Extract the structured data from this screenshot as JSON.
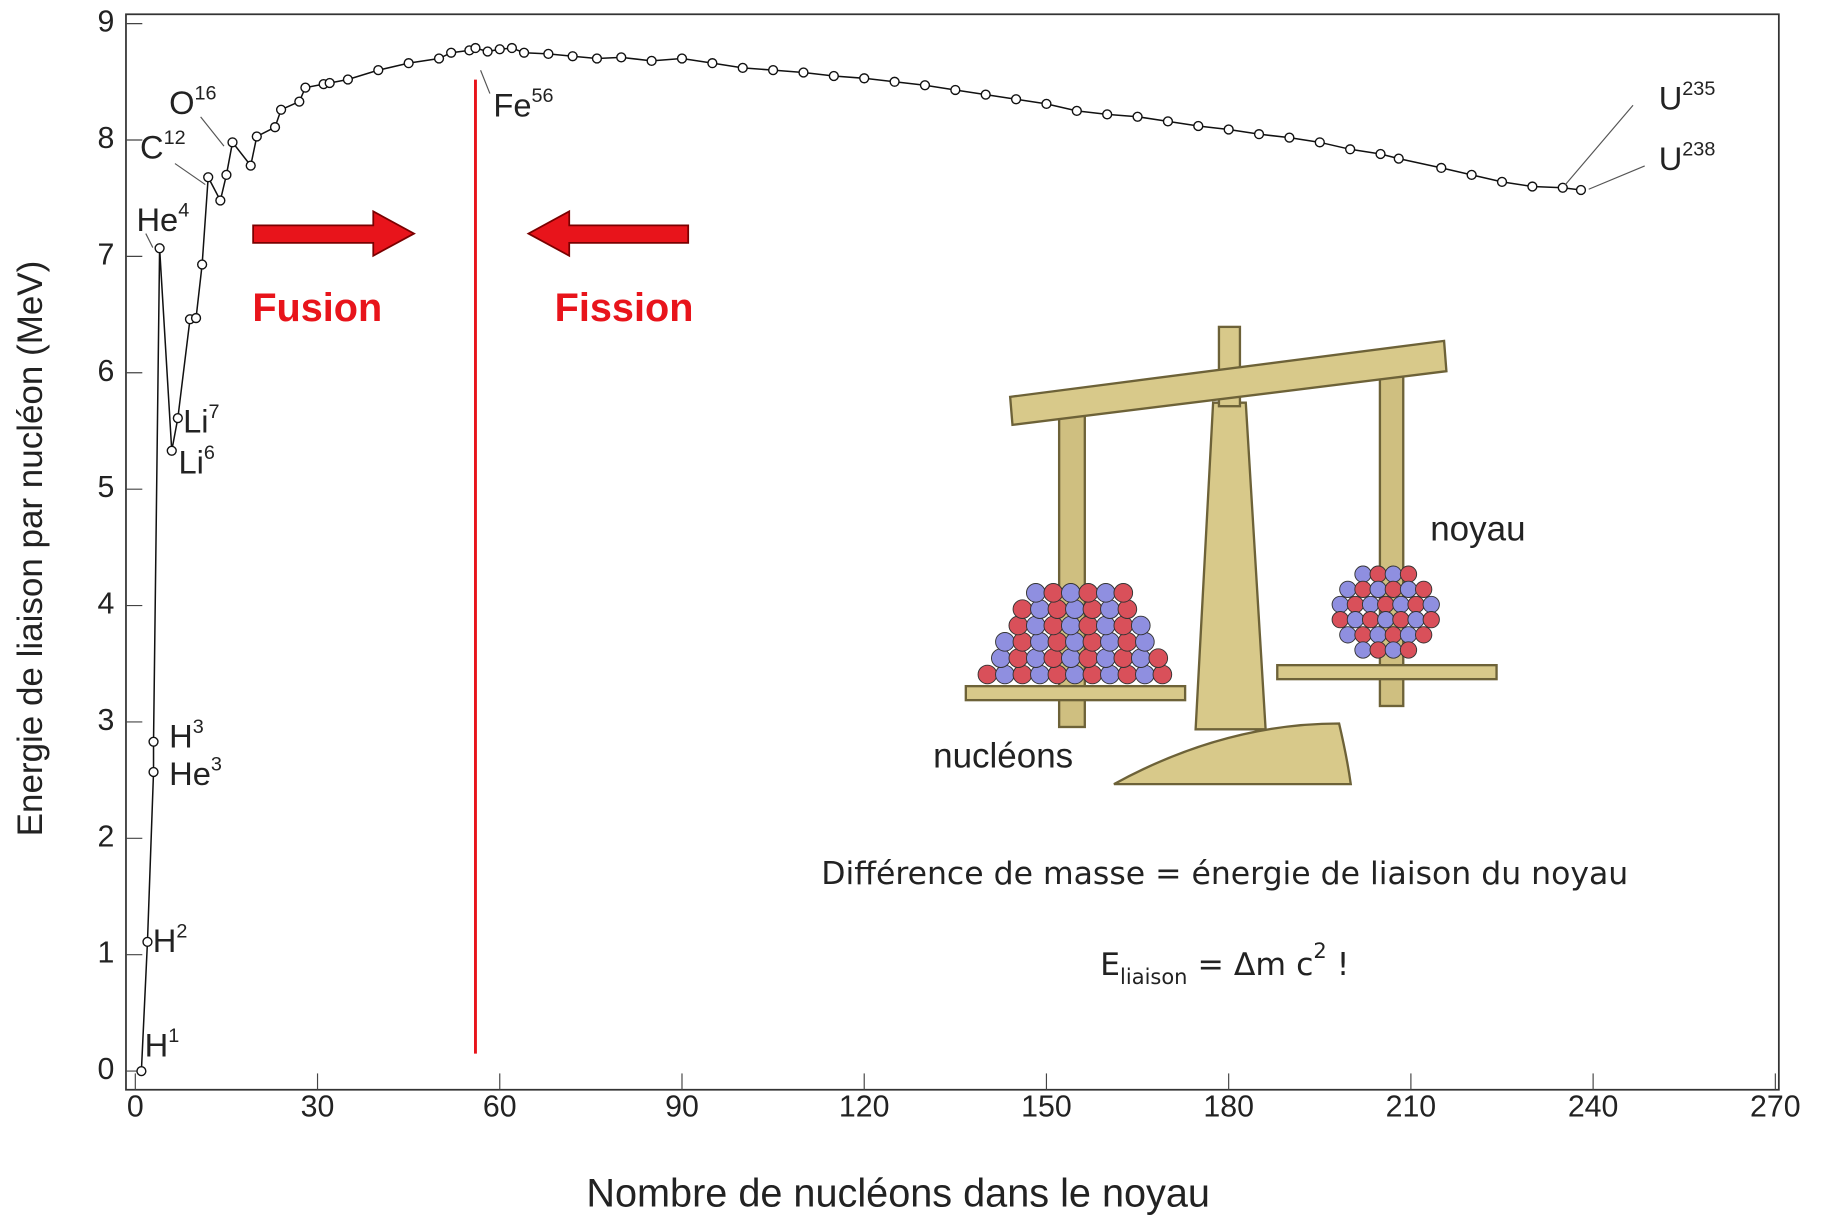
{
  "chart_data": {
    "type": "line",
    "xlabel": "Nombre de nucléons dans le noyau",
    "ylabel": "Energie de liaison par nucléon (MeV)",
    "xlim": [
      0,
      270
    ],
    "xticks": [
      0,
      30,
      60,
      90,
      120,
      150,
      180,
      210,
      240,
      270
    ],
    "ylim": [
      0,
      9
    ],
    "yticks": [
      0,
      1,
      2,
      3,
      4,
      5,
      6,
      7,
      8,
      9
    ],
    "series": [
      {
        "color": "#111111",
        "x": [
          1,
          2,
          3,
          3,
          4,
          6,
          7,
          9,
          10,
          11,
          12,
          14,
          15,
          16,
          19,
          20,
          23,
          24,
          27,
          28,
          31,
          32,
          35,
          40,
          45,
          50,
          52,
          55,
          56,
          58,
          60,
          62,
          64,
          68,
          72,
          76,
          80,
          85,
          90,
          95,
          100,
          105,
          110,
          115,
          120,
          125,
          130,
          135,
          140,
          145,
          150,
          155,
          160,
          165,
          170,
          175,
          180,
          185,
          190,
          195,
          200,
          205,
          208,
          215,
          220,
          225,
          230,
          235,
          238
        ],
        "values": [
          0,
          1.11,
          2.57,
          2.83,
          7.07,
          5.33,
          5.61,
          6.46,
          6.47,
          6.93,
          7.68,
          7.48,
          7.7,
          7.98,
          7.78,
          8.03,
          8.11,
          8.26,
          8.33,
          8.45,
          8.48,
          8.49,
          8.52,
          8.6,
          8.66,
          8.7,
          8.75,
          8.77,
          8.79,
          8.76,
          8.78,
          8.79,
          8.75,
          8.74,
          8.72,
          8.7,
          8.71,
          8.68,
          8.7,
          8.66,
          8.62,
          8.6,
          8.58,
          8.55,
          8.53,
          8.5,
          8.47,
          8.43,
          8.39,
          8.35,
          8.31,
          8.25,
          8.22,
          8.2,
          8.16,
          8.12,
          8.09,
          8.05,
          8.02,
          7.98,
          7.92,
          7.88,
          7.84,
          7.76,
          7.7,
          7.64,
          7.6,
          7.59,
          7.57
        ]
      }
    ],
    "annotations": [
      {
        "text": "H",
        "sup": "1"
      },
      {
        "text": "H",
        "sup": "2"
      },
      {
        "text": "H",
        "sup": "3"
      },
      {
        "text": "He",
        "sup": "3"
      },
      {
        "text": "He",
        "sup": "4"
      },
      {
        "text": "Li",
        "sup": "7"
      },
      {
        "text": "Li",
        "sup": "6"
      },
      {
        "text": "C",
        "sup": "12"
      },
      {
        "text": "O",
        "sup": "16"
      },
      {
        "text": "Fe",
        "sup": "56"
      },
      {
        "text": "U",
        "sup": "235"
      },
      {
        "text": "U",
        "sup": "238"
      }
    ],
    "vline": {
      "x": 56,
      "color": "#e8141b"
    },
    "fusion_label": "Fusion",
    "fission_label": "Fission",
    "illustration_labels": {
      "nucleus": "noyau",
      "nucleons": "nucléons"
    },
    "caption": "Différence de masse = énergie de liaison du noyau",
    "formula": {
      "symbol": "E",
      "subscript": "liaison",
      "middle": " = Δm c",
      "superscript": "2",
      "end": " !"
    }
  }
}
